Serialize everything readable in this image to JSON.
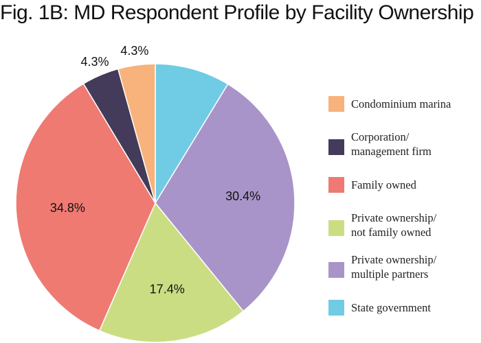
{
  "chart_data": {
    "type": "pie",
    "title": "Fig. 1B: MD Respondent Profile by Facility Ownership",
    "slices": [
      {
        "label": "Condominium marina",
        "value": 4.3,
        "data_label": "4.3%",
        "color": "#f8b27b"
      },
      {
        "label": "Corporation/ management firm",
        "label_lines": [
          "Corporation/",
          "management firm"
        ],
        "value": 4.3,
        "data_label": "4.3%",
        "color": "#443a59"
      },
      {
        "label": "Family owned",
        "value": 34.8,
        "data_label": "34.8%",
        "color": "#ee7a72"
      },
      {
        "label": "Private ownership/ not family owned",
        "label_lines": [
          "Private ownership/",
          "not family owned"
        ],
        "value": 17.4,
        "data_label": "17.4%",
        "color": "#cbdd83"
      },
      {
        "label": "Private ownership/ multiple partners",
        "label_lines": [
          "Private ownership/",
          "multiple partners"
        ],
        "value": 30.4,
        "data_label": "30.4%",
        "color": "#a894c8"
      },
      {
        "label": "State government",
        "value": 8.7,
        "data_label": "",
        "color": "#70cbe5"
      }
    ],
    "legend_position": "right"
  }
}
